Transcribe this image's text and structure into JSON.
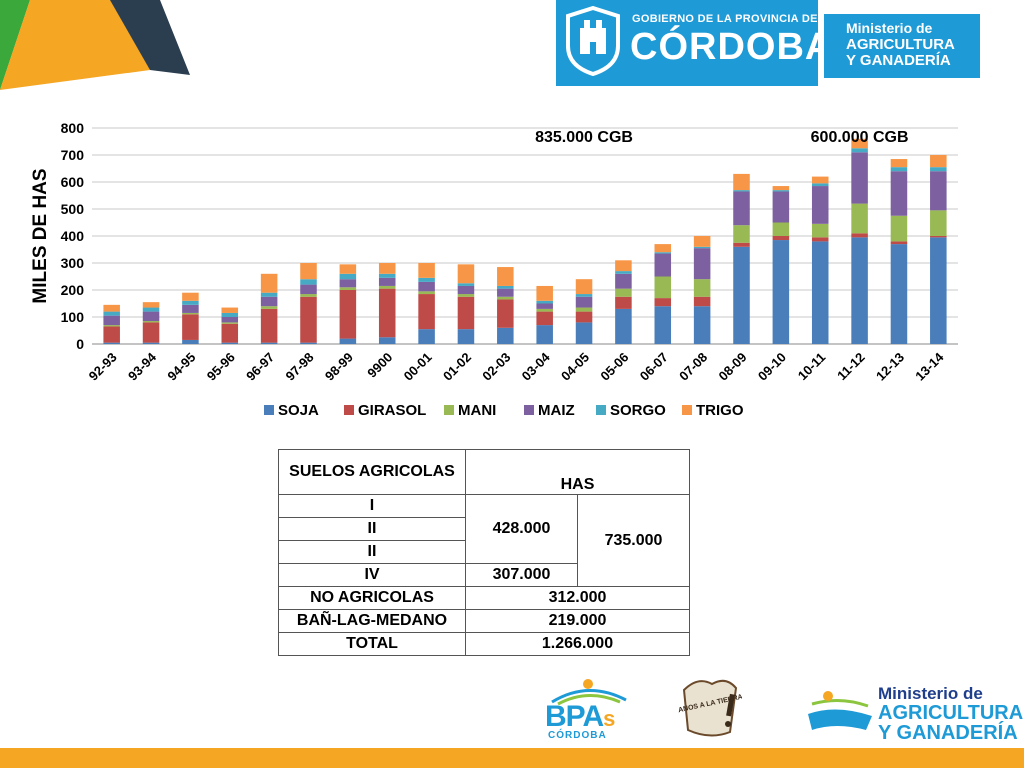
{
  "header": {
    "gov_line": "GOBIERNO DE LA PROVINCIA DE",
    "gov_name": "CÓRDOBA",
    "ministry_line1": "Ministerio de",
    "ministry_line2": "AGRICULTURA",
    "ministry_line3": "Y GANADERÍA"
  },
  "colors": {
    "banner_blue": "#1e9ad6",
    "accent_orange": "#f5a623",
    "deco_green": "#3aa83a",
    "deco_dark": "#2b3e4f"
  },
  "chart_data": {
    "type": "bar",
    "stacked": true,
    "title": "",
    "xlabel": "",
    "ylabel": "MILES DE HAS",
    "ylim": [
      0,
      800
    ],
    "yticks": [
      0,
      100,
      200,
      300,
      400,
      500,
      600,
      700,
      800
    ],
    "grid": true,
    "legend": "bottom",
    "categories": [
      "92-93",
      "93-94",
      "94-95",
      "95-96",
      "96-97",
      "97-98",
      "98-99",
      "9900",
      "00-01",
      "01-02",
      "02-03",
      "03-04",
      "04-05",
      "05-06",
      "06-07",
      "07-08",
      "08-09",
      "09-10",
      "10-11",
      "11-12",
      "12-13",
      "13-14"
    ],
    "series": [
      {
        "name": "SOJA",
        "color": "#4a7ebb",
        "values": [
          5,
          5,
          15,
          5,
          5,
          5,
          20,
          25,
          55,
          55,
          60,
          70,
          80,
          130,
          140,
          140,
          360,
          385,
          380,
          395,
          370,
          395
        ]
      },
      {
        "name": "GIRASOL",
        "color": "#be4b48",
        "values": [
          60,
          75,
          95,
          70,
          125,
          170,
          180,
          180,
          130,
          120,
          105,
          50,
          40,
          45,
          30,
          35,
          15,
          15,
          15,
          15,
          10,
          5
        ]
      },
      {
        "name": "MANI",
        "color": "#98b954",
        "values": [
          5,
          5,
          5,
          5,
          10,
          10,
          10,
          10,
          10,
          10,
          10,
          10,
          15,
          30,
          80,
          65,
          65,
          50,
          50,
          110,
          95,
          95
        ]
      },
      {
        "name": "MAIZ",
        "color": "#7d60a0",
        "values": [
          35,
          35,
          30,
          20,
          35,
          35,
          30,
          30,
          35,
          30,
          30,
          20,
          40,
          55,
          85,
          115,
          125,
          115,
          140,
          190,
          165,
          145
        ]
      },
      {
        "name": "SORGO",
        "color": "#46aac5",
        "values": [
          15,
          15,
          15,
          15,
          15,
          20,
          20,
          15,
          15,
          10,
          10,
          10,
          10,
          10,
          5,
          5,
          5,
          5,
          10,
          15,
          15,
          15
        ]
      },
      {
        "name": "TRIGO",
        "color": "#f79646",
        "values": [
          25,
          20,
          30,
          20,
          70,
          60,
          35,
          40,
          55,
          70,
          70,
          55,
          55,
          40,
          30,
          40,
          60,
          15,
          25,
          35,
          30,
          45
        ]
      }
    ],
    "annotations": [
      {
        "text": "835.000 CGB",
        "x": "04-05",
        "y": 775
      },
      {
        "text": "600.000 CGB",
        "x": "11-12",
        "y": 775
      }
    ]
  },
  "table": {
    "header": {
      "col1": "SUELOS AGRICOLAS",
      "col2": "HAS"
    },
    "class_I": "I",
    "class_II": "II",
    "class_III": "II",
    "class_IV": "IV",
    "value_I_III": "428.000",
    "value_IV": "307.000",
    "value_total_agri": "735.000",
    "non_agri_label": "NO AGRICOLAS",
    "non_agri_value": "312.000",
    "ban_label": "BAÑ-LAG-MEDANO",
    "ban_value": "219.000",
    "total_label": "TOTAL",
    "total_value": "1.266.000"
  },
  "footer": {
    "bpa_text": "BPA",
    "bpa_s": "s",
    "bpa_sub": "CÓRDOBA",
    "manos_text": "MANOS A LA TIERRA",
    "ministry_line1": "Ministerio de",
    "ministry_line2": "AGRICULTURA",
    "ministry_line3": "Y GANADERÍA"
  }
}
